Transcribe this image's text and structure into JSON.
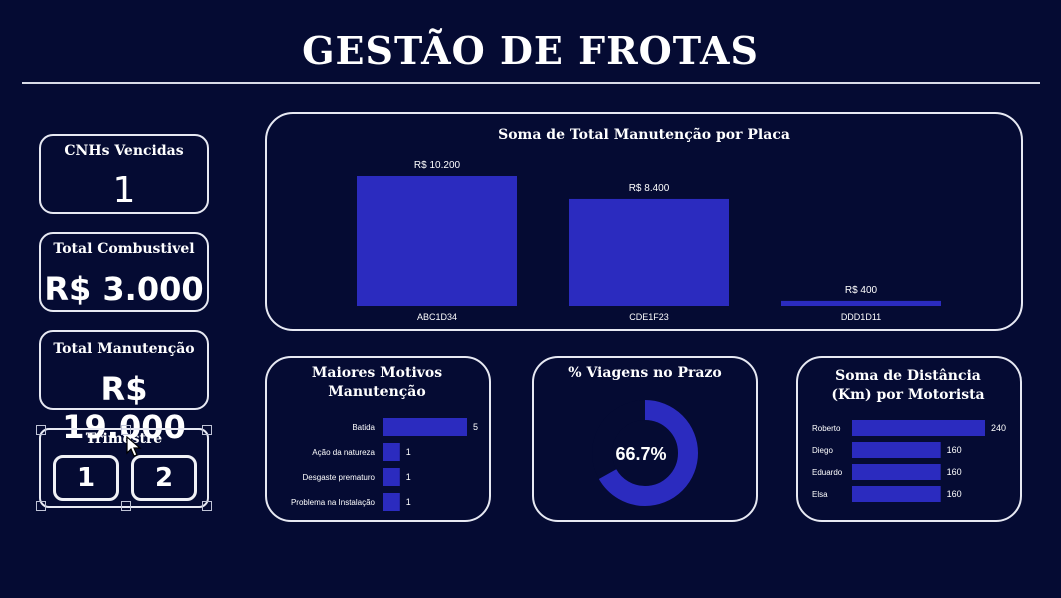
{
  "header": {
    "title": "GESTÃO DE FROTAS"
  },
  "kpis": {
    "cnh": {
      "label": "CNHs Vencidas",
      "value": "1"
    },
    "combustivel": {
      "label": "Total Combustivel",
      "value": "R$ 3.000"
    },
    "manutencao": {
      "label": "Total Manutenção",
      "value": "R$ 19.000"
    }
  },
  "trimestre": {
    "label": "Trimestre",
    "options": [
      "1",
      "2"
    ]
  },
  "colors": {
    "background": "#050b33",
    "bar": "#2b2bbf",
    "border": "#e7e9f3",
    "donut_track": "#050b33"
  },
  "chart_data": [
    {
      "type": "bar",
      "title": "Soma de Total Manutenção por Placa",
      "categories": [
        "ABC1D34",
        "CDE1F23",
        "DDD1D11"
      ],
      "values": [
        10200,
        8400,
        400
      ],
      "data_labels": [
        "R$ 10.200",
        "R$ 8.400",
        "R$ 400"
      ],
      "ylim": [
        0,
        10200
      ]
    },
    {
      "type": "bar",
      "orientation": "horizontal",
      "title": "Maiores Motivos Manutenção",
      "categories": [
        "Batida",
        "Ação da natureza",
        "Desgaste prematuro",
        "Problema na Instalação"
      ],
      "values": [
        5,
        1,
        1,
        1
      ],
      "data_labels": [
        "5",
        "1",
        "1",
        "1"
      ]
    },
    {
      "type": "pie",
      "title": "% Viagens no Prazo",
      "values": [
        66.7
      ],
      "center_label": "66.7%"
    },
    {
      "type": "bar",
      "orientation": "horizontal",
      "title": "Soma de Distância (Km) por Motorista",
      "categories": [
        "Roberto",
        "Diego",
        "Eduardo",
        "Elsa"
      ],
      "values": [
        240,
        160,
        160,
        160
      ],
      "data_labels": [
        "240",
        "160",
        "160",
        "160"
      ]
    }
  ]
}
